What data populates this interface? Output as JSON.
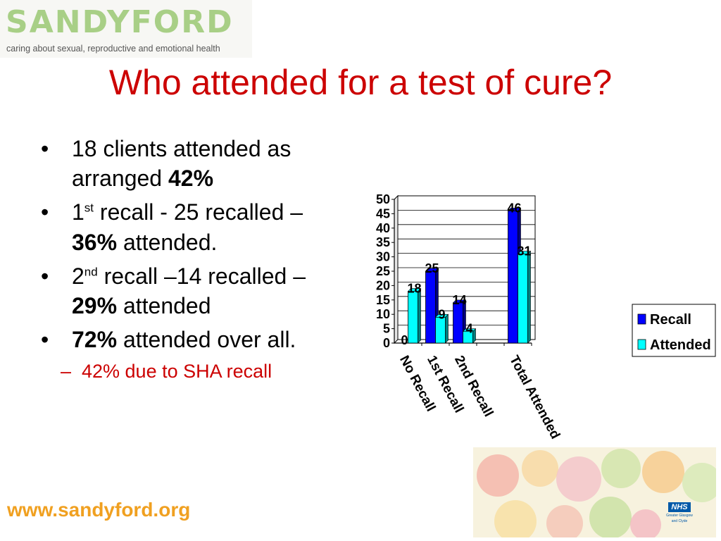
{
  "logo": {
    "word": "SANDYFORD",
    "tagline": "caring about sexual, reproductive and emotional health"
  },
  "title": "Who attended for a test of cure?",
  "bullets": [
    {
      "pre": "18 clients attended as arranged ",
      "bold": "42%"
    },
    {
      "b1": "1",
      "sup": "st",
      "text": "  recall - 25 recalled – ",
      "bold": "36%",
      "post": " attended."
    },
    {
      "b1": "2",
      "sup": "nd",
      "text": " recall –14 recalled – ",
      "bold": "29%",
      "post": " attended"
    },
    {
      "bold": "72%",
      "post": " attended over all."
    }
  ],
  "sub_bullet": "42% due to SHA recall",
  "footer_url": "www.sandyford.org",
  "nhs": {
    "badge": "NHS",
    "line1": "Greater Glasgow",
    "line2": "and Clyde"
  },
  "colors": {
    "title": "#cc0000",
    "recall": "#0000ff",
    "attended": "#00ffff",
    "url": "#f0a020"
  },
  "chart_data": {
    "type": "bar",
    "categories": [
      "No Recall",
      "1st Recall",
      "2nd Recall",
      "",
      "Total Attended"
    ],
    "series": [
      {
        "name": "Recall",
        "values": [
          0,
          25,
          14,
          null,
          46
        ]
      },
      {
        "name": "Attended",
        "values": [
          18,
          9,
          4,
          null,
          31
        ]
      }
    ],
    "ylim": [
      0,
      50
    ],
    "yticks": [
      0,
      5,
      10,
      15,
      20,
      25,
      30,
      35,
      40,
      45,
      50
    ],
    "data_labels": true,
    "grid": true,
    "legend": "right"
  }
}
